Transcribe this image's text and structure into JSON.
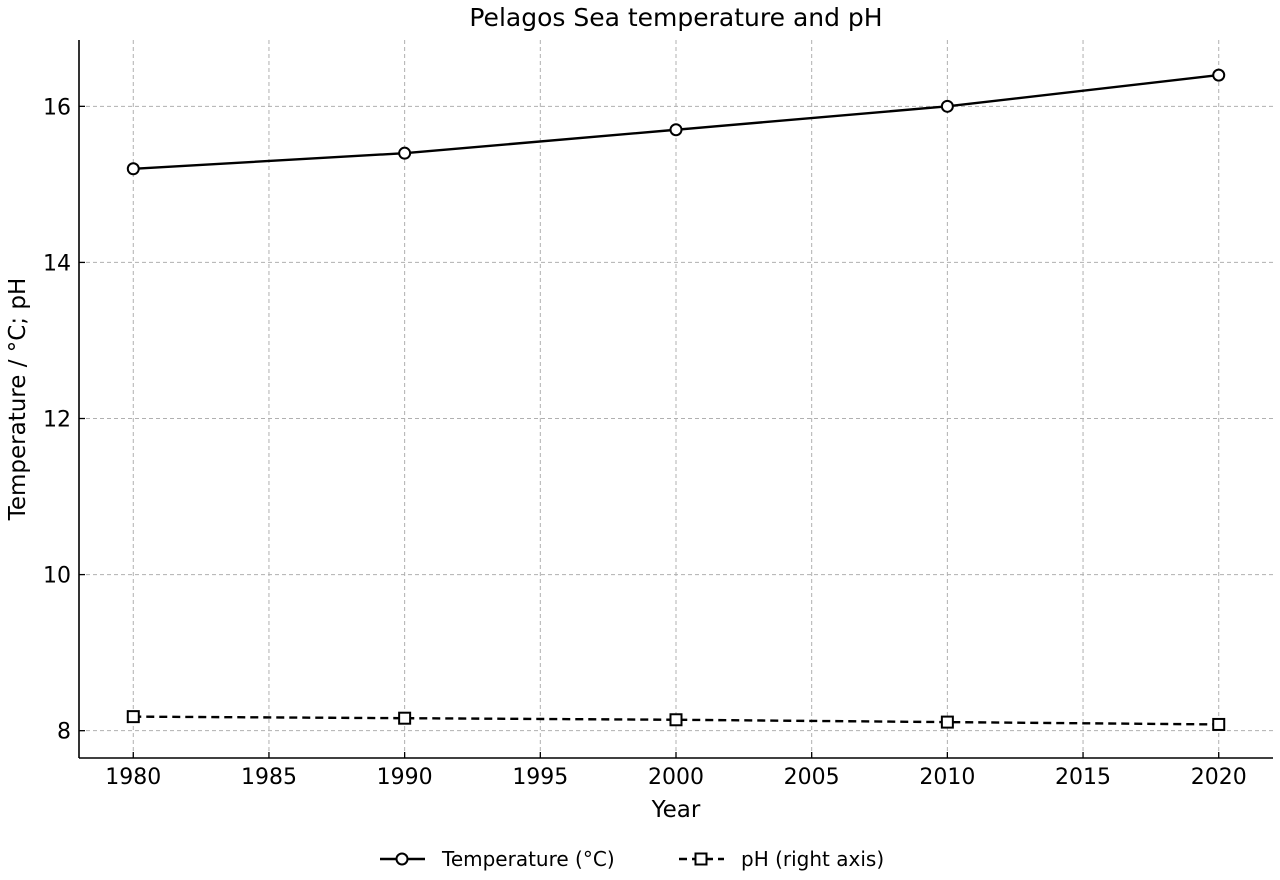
{
  "chart_data": {
    "type": "line",
    "title": "Pelagos Sea temperature and pH",
    "xlabel": "Year",
    "ylabel": "Temperature / °C; pH",
    "x": [
      1980,
      1990,
      2000,
      2010,
      2020
    ],
    "xlim": [
      1978,
      2022
    ],
    "ylim": [
      7.65,
      16.85
    ],
    "xticks": [
      1980,
      1985,
      1990,
      1995,
      2000,
      2005,
      2010,
      2015,
      2020
    ],
    "yticks": [
      8,
      10,
      12,
      14,
      16
    ],
    "grid": true,
    "legend_position": "bottom-center",
    "series": [
      {
        "name": "Temperature (°C)",
        "values": [
          15.2,
          15.4,
          15.7,
          16.0,
          16.4
        ],
        "line_style": "solid",
        "marker": "circle",
        "color": "#000000"
      },
      {
        "name": "pH (right axis)",
        "values": [
          8.18,
          8.16,
          8.14,
          8.11,
          8.08
        ],
        "line_style": "dashed",
        "marker": "square",
        "color": "#000000"
      }
    ]
  }
}
